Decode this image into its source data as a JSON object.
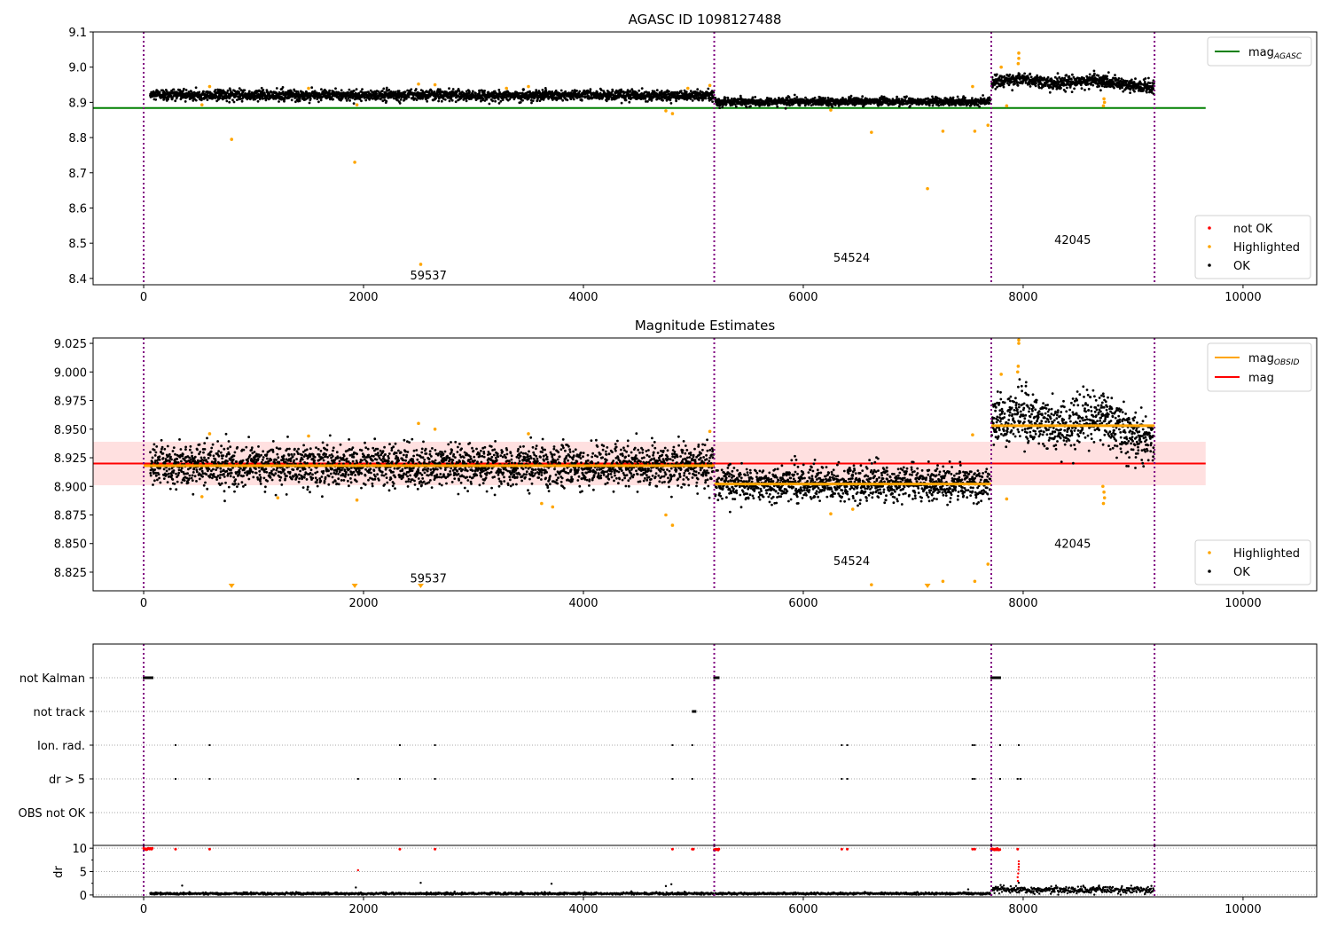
{
  "chart_data": [
    {
      "type": "scatter",
      "title": "AGASC ID 1098127488",
      "xlim": [
        -460,
        10670
      ],
      "ylim": [
        8.382,
        9.1
      ],
      "xticks": [
        0,
        2000,
        4000,
        6000,
        8000,
        10000
      ],
      "yticks": [
        8.4,
        8.5,
        8.6,
        8.7,
        8.8,
        8.9,
        9.0,
        9.1
      ],
      "ytick_labels": [
        "8.4",
        "8.5",
        "8.6",
        "8.7",
        "8.8",
        "8.9",
        "9.0",
        "9.1"
      ],
      "vlines": [
        0,
        5190,
        7710,
        9195
      ],
      "hlines": [
        {
          "name": "mag_AGASC",
          "y": 8.884,
          "x0": -460,
          "x1": 9660,
          "color": "#008000"
        }
      ],
      "segments": [
        {
          "obsid": "59537",
          "x0": 60,
          "x1": 5185,
          "mean": 8.92,
          "sd": 0.0075,
          "wave": 0
        },
        {
          "obsid": "54524",
          "x0": 5200,
          "x1": 7700,
          "mean": 8.902,
          "sd": 0.0055,
          "wave": 0
        },
        {
          "obsid": "42045",
          "x0": 7715,
          "x1": 9190,
          "mean": 8.955,
          "sd": 0.009,
          "wave": 0.012
        }
      ],
      "highlighted": [
        [
          800,
          8.795
        ],
        [
          1920,
          8.73
        ],
        [
          2520,
          8.44
        ],
        [
          4750,
          8.876
        ],
        [
          4810,
          8.868
        ],
        [
          6620,
          8.815
        ],
        [
          7130,
          8.655
        ],
        [
          7270,
          8.818
        ],
        [
          7560,
          8.818
        ],
        [
          7680,
          8.835
        ],
        [
          7540,
          8.945
        ],
        [
          7960,
          9.04
        ],
        [
          7960,
          9.025
        ],
        [
          7955,
          9.01
        ],
        [
          7800,
          9.0
        ],
        [
          7850,
          8.89
        ],
        [
          8730,
          8.89
        ],
        [
          8740,
          8.9
        ],
        [
          8735,
          8.91
        ],
        [
          6250,
          8.878
        ],
        [
          600,
          8.945
        ],
        [
          2500,
          8.952
        ],
        [
          2650,
          8.95
        ],
        [
          1500,
          8.94
        ],
        [
          3500,
          8.945
        ],
        [
          5150,
          8.948
        ],
        [
          4950,
          8.94
        ],
        [
          530,
          8.893
        ],
        [
          1940,
          8.893
        ],
        [
          3300,
          8.94
        ]
      ],
      "annotations": [
        {
          "text": "59537",
          "x": 2590,
          "y": 8.41
        },
        {
          "text": "54524",
          "x": 6440,
          "y": 8.46
        },
        {
          "text": "42045",
          "x": 8450,
          "y": 8.51
        }
      ],
      "legend_top": {
        "position": "top-right",
        "entries": [
          {
            "label": "mag",
            "sub": "AGASC",
            "color": "#008000"
          }
        ]
      },
      "legend_bottom": {
        "position": "bottom-right",
        "entries": [
          {
            "label": "not OK",
            "color": "#ff0000"
          },
          {
            "label": "Highlighted",
            "color": "#ffa500"
          },
          {
            "label": "OK",
            "color": "#000000"
          }
        ]
      }
    },
    {
      "type": "scatter",
      "title": "Magnitude Estimates",
      "xlim": [
        -460,
        10670
      ],
      "ylim": [
        8.8087,
        9.0297
      ],
      "xticks": [
        0,
        2000,
        4000,
        6000,
        8000,
        10000
      ],
      "yticks": [
        8.825,
        8.85,
        8.875,
        8.9,
        8.925,
        8.95,
        8.975,
        9.0,
        9.025
      ],
      "ytick_labels": [
        "8.825",
        "8.850",
        "8.875",
        "8.900",
        "8.925",
        "8.950",
        "8.975",
        "9.000",
        "9.025"
      ],
      "vlines": [
        0,
        5190,
        7710,
        9195
      ],
      "band": {
        "y0": 8.901,
        "y1": 8.939,
        "x0": -460,
        "x1": 9660,
        "color": "#ffcccc"
      },
      "hlines": [
        {
          "name": "mag",
          "y": 8.92,
          "x0": -460,
          "x1": 9660,
          "color": "#ff0000"
        },
        {
          "name": "mag_OBSID",
          "y": 8.918,
          "x0": 0,
          "x1": 5190,
          "color": "#ffa500"
        },
        {
          "name": "mag_OBSID",
          "y": 8.902,
          "x0": 5190,
          "x1": 7710,
          "color": "#ffa500"
        },
        {
          "name": "mag_OBSID",
          "y": 8.953,
          "x0": 7710,
          "x1": 9195,
          "color": "#ffa500"
        }
      ],
      "segments": [
        {
          "obsid": "59537",
          "x0": 60,
          "x1": 5185,
          "mean": 8.918,
          "sd": 0.009,
          "wave": 0
        },
        {
          "obsid": "54524",
          "x0": 5200,
          "x1": 7700,
          "mean": 8.902,
          "sd": 0.0075,
          "wave": 0
        },
        {
          "obsid": "42045",
          "x0": 7715,
          "x1": 9190,
          "mean": 8.953,
          "sd": 0.011,
          "wave": 0.012
        }
      ],
      "highlighted": [
        [
          600,
          8.946
        ],
        [
          1500,
          8.944
        ],
        [
          2500,
          8.955
        ],
        [
          2650,
          8.95
        ],
        [
          3500,
          8.946
        ],
        [
          4750,
          8.875
        ],
        [
          4810,
          8.866
        ],
        [
          5150,
          8.948
        ],
        [
          530,
          8.891
        ],
        [
          1220,
          8.89
        ],
        [
          1940,
          8.888
        ],
        [
          3620,
          8.885
        ],
        [
          3720,
          8.882
        ],
        [
          6620,
          8.814
        ],
        [
          7270,
          8.817
        ],
        [
          7560,
          8.817
        ],
        [
          7680,
          8.832
        ],
        [
          7540,
          8.945
        ],
        [
          7850,
          8.889
        ],
        [
          7800,
          8.998
        ],
        [
          7960,
          9.028
        ],
        [
          7960,
          9.025
        ],
        [
          7955,
          9.005
        ],
        [
          7950,
          9.0
        ],
        [
          8730,
          8.885
        ],
        [
          8740,
          8.89
        ],
        [
          8735,
          8.895
        ],
        [
          8725,
          8.9
        ],
        [
          6250,
          8.876
        ],
        [
          6450,
          8.88
        ]
      ],
      "offscale_low": [
        800,
        1920,
        2520,
        7130
      ],
      "annotations": [
        {
          "text": "59537",
          "x": 2590,
          "y": 8.82
        },
        {
          "text": "54524",
          "x": 6440,
          "y": 8.835
        },
        {
          "text": "42045",
          "x": 8450,
          "y": 8.85
        }
      ],
      "legend_top": {
        "position": "top-right",
        "entries": [
          {
            "label": "mag",
            "sub": "OBSID",
            "color": "#ffa500"
          },
          {
            "label": "mag",
            "sub": "",
            "color": "#ff0000"
          }
        ]
      },
      "legend_bottom": {
        "position": "bottom-right",
        "entries": [
          {
            "label": "Highlighted",
            "color": "#ffa500"
          },
          {
            "label": "OK",
            "color": "#000000"
          }
        ]
      }
    },
    {
      "type": "scatter",
      "title": "",
      "xlim": [
        -460,
        10670
      ],
      "xticks": [
        0,
        2000,
        4000,
        6000,
        8000,
        10000
      ],
      "vlines": [
        0,
        5190,
        7710,
        9195
      ],
      "flags": [
        "not Kalman",
        "not track",
        "Ion. rad.",
        "dr > 5",
        "OBS not OK"
      ],
      "flag_points": {
        "not Kalman": [
          [
            0,
            80
          ],
          [
            5190,
            5235
          ],
          [
            7710,
            7790
          ]
        ],
        "not track": [
          [
            4995,
            5025
          ]
        ],
        "Ion. rad.": [
          290,
          600,
          2330,
          2650,
          4810,
          4990,
          6350,
          6400,
          7540,
          7560,
          7790,
          7960
        ],
        "dr > 5": [
          290,
          600,
          1950,
          2330,
          2650,
          4810,
          4990,
          6350,
          6400,
          7540,
          7560,
          7790,
          7950,
          7975
        ],
        "OBS not OK": []
      },
      "dr": {
        "ylabel": "dr",
        "ylim": [
          -0.4,
          10.6
        ],
        "yticks": [
          0,
          5,
          10
        ],
        "red_at_10": [
          [
            0,
            80
          ],
          [
            5190,
            5235
          ],
          [
            7710,
            7790
          ],
          290,
          600,
          2330,
          2650,
          4810,
          4990,
          5000,
          6350,
          6400,
          7540,
          7560,
          7950
        ],
        "red_extra": [
          [
            1950,
            5.3
          ],
          [
            7960,
            7.2
          ],
          [
            7960,
            6.6
          ],
          [
            7960,
            6.0
          ],
          [
            7958,
            5.4
          ],
          [
            7955,
            4.6
          ],
          [
            7950,
            3.8
          ],
          [
            7952,
            3.0
          ]
        ],
        "black_segments": [
          {
            "x0": 60,
            "x1": 5185,
            "mean": 0.3,
            "sd": 0.12
          },
          {
            "x0": 5200,
            "x1": 7700,
            "mean": 0.3,
            "sd": 0.12
          },
          {
            "x0": 7715,
            "x1": 9190,
            "mean": 1.1,
            "sd": 0.35
          }
        ],
        "black_extra": [
          [
            350,
            2.0
          ],
          [
            1930,
            1.6
          ],
          [
            2520,
            2.6
          ],
          [
            3710,
            2.4
          ],
          [
            4750,
            1.9
          ],
          [
            4800,
            2.3
          ],
          [
            7500,
            1.2
          ],
          [
            7960,
            2.6
          ]
        ]
      }
    }
  ]
}
